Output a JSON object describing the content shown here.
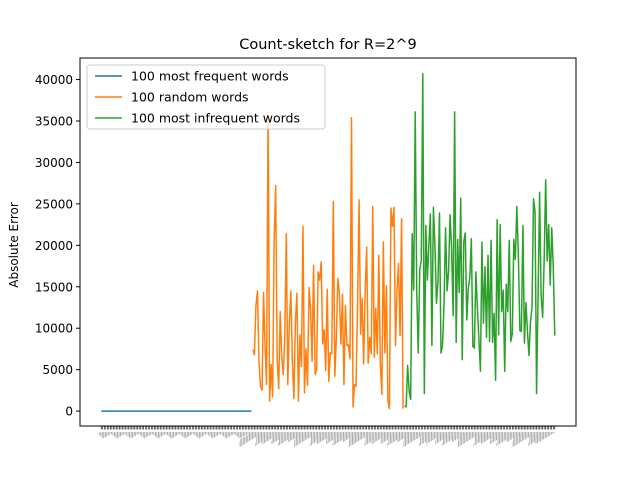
{
  "chart_data": {
    "type": "line",
    "title": "Count-sketch for R=2^9",
    "xlabel": "",
    "ylabel": "Absolute Error",
    "ylim": [
      -1800,
      42600
    ],
    "yticks": [
      0,
      5000,
      10000,
      15000,
      20000,
      25000,
      30000,
      35000,
      40000
    ],
    "grid": false,
    "legend_position": "top-left",
    "x_tick_labels_note": "300 word tick labels, too small to read",
    "series": [
      {
        "name": "100 most frequent words",
        "color": "#1f77b4",
        "x_start": 0,
        "values": [
          0,
          0,
          0,
          0,
          0,
          0,
          0,
          0,
          0,
          0,
          0,
          0,
          0,
          0,
          0,
          0,
          0,
          0,
          0,
          0,
          0,
          0,
          0,
          0,
          0,
          0,
          0,
          0,
          0,
          0,
          0,
          0,
          0,
          0,
          0,
          0,
          0,
          0,
          0,
          0,
          0,
          0,
          0,
          0,
          0,
          0,
          0,
          0,
          0,
          0,
          0,
          0,
          0,
          0,
          0,
          0,
          0,
          0,
          0,
          0,
          0,
          0,
          0,
          0,
          0,
          0,
          0,
          0,
          0,
          0,
          0,
          0,
          0,
          0,
          0,
          0,
          0,
          0,
          0,
          0,
          0,
          0,
          0,
          0,
          0,
          0,
          0,
          0,
          0,
          0,
          0,
          0,
          0,
          0,
          0,
          0,
          0,
          0,
          0,
          0
        ]
      },
      {
        "name": "100 random words",
        "color": "#ff7f0e",
        "x_start": 100,
        "values": [
          7400,
          6800,
          12800,
          14500,
          6000,
          3000,
          2500,
          14300,
          7900,
          3200,
          36000,
          1200,
          5600,
          1700,
          20500,
          27200,
          6300,
          2700,
          12000,
          6600,
          4400,
          8900,
          21400,
          3200,
          10600,
          14500,
          6000,
          1500,
          10700,
          14200,
          1200,
          9200,
          5400,
          22300,
          2200,
          7500,
          3100,
          14900,
          12400,
          6000,
          17600,
          4400,
          5100,
          16800,
          15800,
          18000,
          8100,
          9800,
          4900,
          14700,
          3600,
          7000,
          6900,
          25300,
          4200,
          8800,
          16000,
          14200,
          8100,
          14100,
          3200,
          12700,
          7900,
          8000,
          6300,
          35400,
          500,
          3200,
          3000,
          13000,
          25500,
          9300,
          13600,
          5700,
          14400,
          19800,
          5800,
          8900,
          6900,
          24700,
          6500,
          12400,
          6900,
          18800,
          5800,
          2000,
          20400,
          7000,
          15100,
          1200,
          300,
          24500,
          22300,
          24600,
          7900,
          14500,
          17800,
          9100,
          23200,
          300
        ]
      },
      {
        "name": "100 most infrequent words",
        "color": "#2ca02c",
        "x_start": 200,
        "values": [
          600,
          500,
          5500,
          2400,
          1400,
          21400,
          14600,
          36100,
          14400,
          7000,
          17100,
          18200,
          40700,
          2100,
          22400,
          15800,
          20100,
          23800,
          7900,
          24600,
          20000,
          13000,
          15600,
          23900,
          7000,
          7900,
          12900,
          22100,
          14500,
          16900,
          23700,
          19600,
          11500,
          36100,
          8300,
          20700,
          14300,
          25700,
          6200,
          20400,
          21500,
          11000,
          14800,
          16100,
          20800,
          7800,
          7600,
          16800,
          12400,
          8600,
          4800,
          20400,
          10600,
          17400,
          8900,
          18800,
          8400,
          20600,
          8300,
          11800,
          3700,
          23100,
          9200,
          22500,
          12000,
          14600,
          4800,
          15300,
          12000,
          20600,
          8400,
          9300,
          20700,
          18300,
          24700,
          18800,
          9700,
          9600,
          22400,
          8200,
          13100,
          9600,
          6700,
          10800,
          12500,
          25600,
          24100,
          2100,
          14000,
          26400,
          13900,
          11300,
          18100,
          27900,
          18100,
          22500,
          15200,
          22100,
          17500,
          9100
        ]
      }
    ]
  }
}
